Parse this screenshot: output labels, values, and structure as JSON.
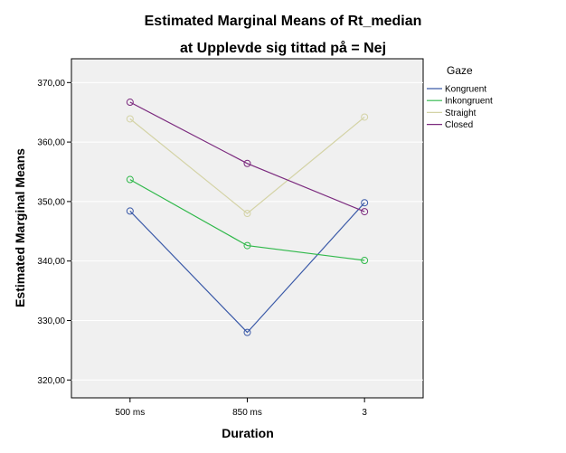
{
  "chart_data": {
    "type": "line",
    "title": "Estimated Marginal Means of Rt_median",
    "subtitle": "at Upplevde sig tittad på = Nej",
    "xlabel": "Duration",
    "ylabel": "Estimated Marginal Means",
    "categories": [
      "500 ms",
      "850 ms",
      "3"
    ],
    "ylim": [
      317,
      374
    ],
    "yticks": [
      320,
      330,
      340,
      350,
      360,
      370
    ],
    "ytick_labels": [
      "320,00",
      "330,00",
      "340,00",
      "350,00",
      "360,00",
      "370,00"
    ],
    "grid": true,
    "legend": {
      "title": "Gaze",
      "position": "right"
    },
    "series": [
      {
        "name": "Kongruent",
        "color": "#3b5aa8",
        "values": [
          348.4,
          328.0,
          349.8
        ]
      },
      {
        "name": "Inkongruent",
        "color": "#2fb84a",
        "values": [
          353.7,
          342.6,
          340.1
        ]
      },
      {
        "name": "Straight",
        "color": "#d4d3a6",
        "values": [
          363.9,
          348.0,
          364.2
        ]
      },
      {
        "name": "Closed",
        "color": "#7b2a7e",
        "values": [
          366.7,
          356.4,
          348.3
        ]
      }
    ],
    "colors": {
      "plot_background": "#f0f0f0",
      "gridline": "#ffffff"
    }
  }
}
